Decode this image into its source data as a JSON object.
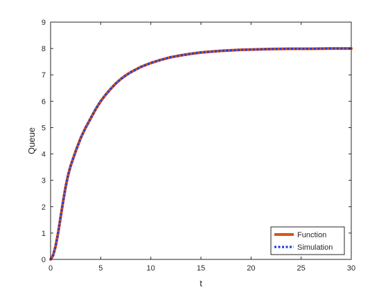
{
  "chart_data": {
    "type": "line",
    "xlabel": "t",
    "ylabel": "Queue",
    "xlim": [
      0,
      30
    ],
    "ylim": [
      0,
      9
    ],
    "xticks": [
      "0",
      "5",
      "10",
      "15",
      "20",
      "25",
      "30"
    ],
    "yticks": [
      "0",
      "1",
      "2",
      "3",
      "4",
      "5",
      "6",
      "7",
      "8",
      "9"
    ],
    "grid": false,
    "legend_position": "bottom-right",
    "x": [
      0,
      0.25,
      0.5,
      0.75,
      1,
      1.25,
      1.5,
      1.75,
      2,
      2.5,
      3,
      3.5,
      4,
      4.5,
      5,
      5.5,
      6,
      6.5,
      7,
      7.5,
      8,
      9,
      10,
      11,
      12,
      13,
      14,
      15,
      16,
      17,
      18,
      19,
      20,
      22,
      24,
      26,
      28,
      30
    ],
    "series": [
      {
        "name": "Function",
        "color": "#D95319",
        "style": "solid",
        "values": [
          0,
          0.15,
          0.5,
          1.0,
          1.6,
          2.2,
          2.75,
          3.2,
          3.55,
          4.1,
          4.6,
          5.0,
          5.35,
          5.7,
          6.0,
          6.25,
          6.47,
          6.67,
          6.84,
          6.98,
          7.1,
          7.3,
          7.45,
          7.57,
          7.67,
          7.74,
          7.8,
          7.85,
          7.88,
          7.91,
          7.93,
          7.95,
          7.96,
          7.98,
          7.99,
          7.99,
          8.0,
          8.0
        ]
      },
      {
        "name": "Simulation",
        "color": "#1F3FE0",
        "style": "dotted",
        "values": [
          0,
          0.15,
          0.5,
          1.0,
          1.6,
          2.2,
          2.75,
          3.2,
          3.55,
          4.1,
          4.6,
          5.0,
          5.35,
          5.7,
          6.0,
          6.25,
          6.47,
          6.67,
          6.84,
          6.98,
          7.1,
          7.3,
          7.45,
          7.57,
          7.67,
          7.74,
          7.8,
          7.85,
          7.88,
          7.91,
          7.93,
          7.95,
          7.96,
          7.98,
          7.99,
          7.99,
          8.0,
          8.0
        ]
      }
    ]
  }
}
